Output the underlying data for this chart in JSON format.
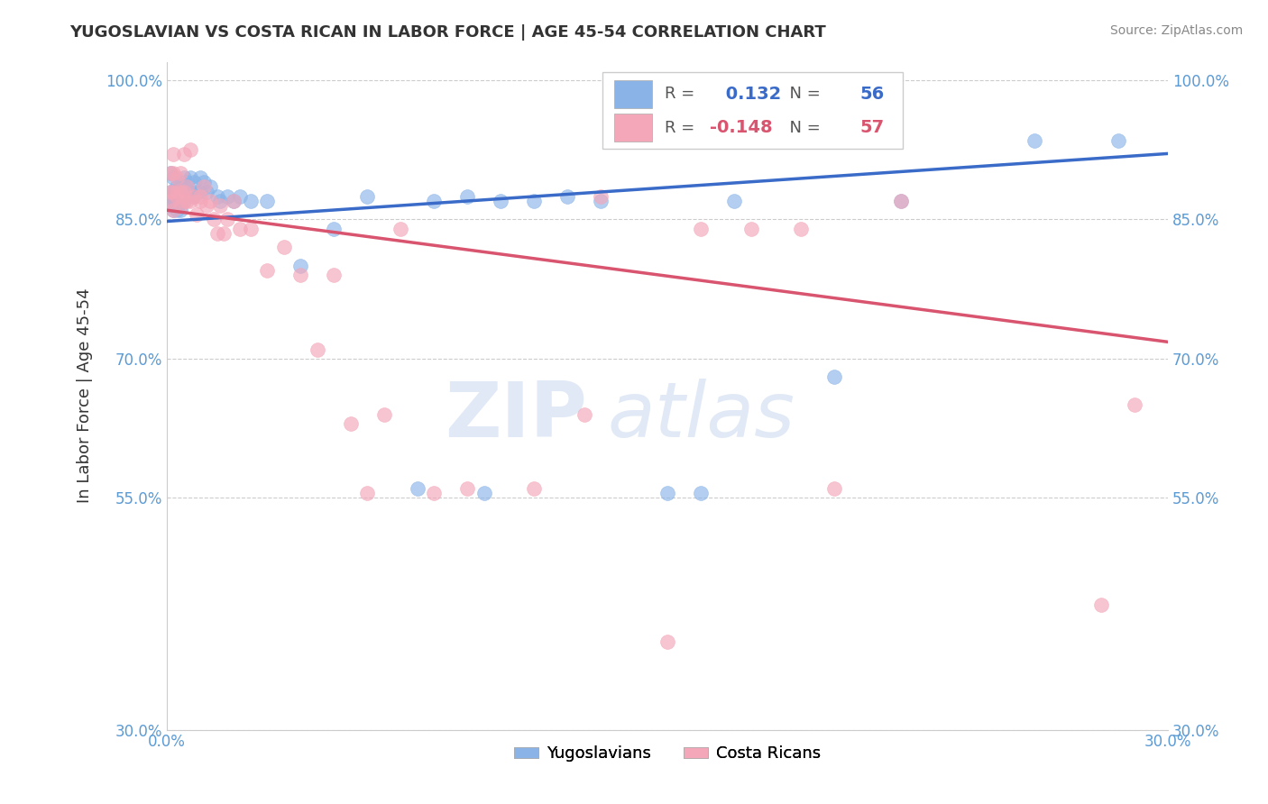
{
  "title": "YUGOSLAVIAN VS COSTA RICAN IN LABOR FORCE | AGE 45-54 CORRELATION CHART",
  "source": "Source: ZipAtlas.com",
  "ylabel": "In Labor Force | Age 45-54",
  "xlim": [
    0.0,
    0.3
  ],
  "ylim": [
    0.3,
    1.02
  ],
  "yticks": [
    0.3,
    0.55,
    0.7,
    0.85,
    1.0
  ],
  "ytick_labels": [
    "30.0%",
    "55.0%",
    "70.0%",
    "85.0%",
    "100.0%"
  ],
  "xticks": [
    0.0,
    0.3
  ],
  "xtick_labels": [
    "0.0%",
    "30.0%"
  ],
  "blue_R": 0.132,
  "blue_N": 56,
  "pink_R": -0.148,
  "pink_N": 57,
  "blue_color": "#8ab4e8",
  "pink_color": "#f4a7b9",
  "blue_line_color": "#3a6bc9",
  "pink_line_color": "#d9546e",
  "legend_blue_label": "Yugoslavians",
  "legend_pink_label": "Costa Ricans",
  "blue_x": [
    0.001,
    0.001,
    0.001,
    0.001,
    0.002,
    0.002,
    0.002,
    0.002,
    0.002,
    0.003,
    0.003,
    0.003,
    0.003,
    0.004,
    0.004,
    0.004,
    0.005,
    0.005,
    0.005,
    0.006,
    0.006,
    0.007,
    0.007,
    0.008,
    0.008,
    0.009,
    0.01,
    0.01,
    0.011,
    0.012,
    0.013,
    0.015,
    0.016,
    0.018,
    0.02,
    0.022,
    0.025,
    0.03,
    0.04,
    0.05,
    0.06,
    0.075,
    0.08,
    0.09,
    0.095,
    0.1,
    0.11,
    0.12,
    0.13,
    0.15,
    0.16,
    0.17,
    0.2,
    0.22,
    0.26,
    0.285
  ],
  "blue_y": [
    0.865,
    0.875,
    0.88,
    0.9,
    0.86,
    0.87,
    0.875,
    0.88,
    0.895,
    0.86,
    0.87,
    0.88,
    0.885,
    0.86,
    0.875,
    0.89,
    0.87,
    0.88,
    0.895,
    0.875,
    0.89,
    0.88,
    0.895,
    0.875,
    0.89,
    0.88,
    0.88,
    0.895,
    0.89,
    0.88,
    0.885,
    0.875,
    0.87,
    0.875,
    0.87,
    0.875,
    0.87,
    0.87,
    0.8,
    0.84,
    0.875,
    0.56,
    0.87,
    0.875,
    0.555,
    0.87,
    0.87,
    0.875,
    0.87,
    0.555,
    0.555,
    0.87,
    0.68,
    0.87,
    0.935,
    0.935
  ],
  "pink_x": [
    0.001,
    0.001,
    0.001,
    0.002,
    0.002,
    0.002,
    0.002,
    0.003,
    0.003,
    0.003,
    0.004,
    0.004,
    0.004,
    0.005,
    0.005,
    0.005,
    0.006,
    0.006,
    0.007,
    0.007,
    0.008,
    0.009,
    0.01,
    0.01,
    0.011,
    0.012,
    0.013,
    0.014,
    0.015,
    0.016,
    0.017,
    0.018,
    0.02,
    0.022,
    0.025,
    0.03,
    0.035,
    0.04,
    0.045,
    0.05,
    0.055,
    0.06,
    0.065,
    0.07,
    0.08,
    0.09,
    0.11,
    0.125,
    0.13,
    0.15,
    0.16,
    0.175,
    0.19,
    0.2,
    0.22,
    0.28,
    0.29
  ],
  "pink_y": [
    0.87,
    0.88,
    0.9,
    0.86,
    0.88,
    0.9,
    0.92,
    0.875,
    0.88,
    0.895,
    0.865,
    0.88,
    0.9,
    0.87,
    0.88,
    0.92,
    0.87,
    0.885,
    0.87,
    0.925,
    0.875,
    0.855,
    0.87,
    0.875,
    0.885,
    0.865,
    0.87,
    0.85,
    0.835,
    0.865,
    0.835,
    0.85,
    0.87,
    0.84,
    0.84,
    0.795,
    0.82,
    0.79,
    0.71,
    0.79,
    0.63,
    0.555,
    0.64,
    0.84,
    0.555,
    0.56,
    0.56,
    0.64,
    0.875,
    0.395,
    0.84,
    0.84,
    0.84,
    0.56,
    0.87,
    0.435,
    0.65
  ],
  "blue_line": [
    0.848,
    0.921
  ],
  "pink_line": [
    0.86,
    0.718
  ]
}
